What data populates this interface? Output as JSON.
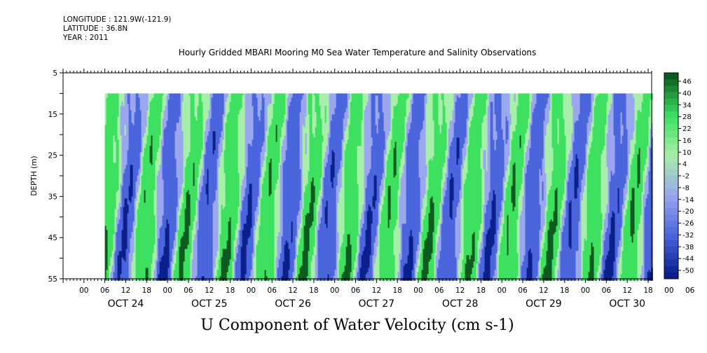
{
  "header": {
    "longitude": "LONGITUDE : 121.9W(-121.9)",
    "latitude": "LATITUDE : 36.8N",
    "year": "YEAR : 2011"
  },
  "chart_data": {
    "type": "heatmap",
    "title": "Hourly Gridded MBARI Mooring M0 Sea Water Temperature and Salinity Observations",
    "xlabel": "U Component of Water Velocity (cm s-1)",
    "ylabel": "DEPTH (m)",
    "y_range": [
      5,
      55
    ],
    "y_ticks": [
      "5",
      "15",
      "25",
      "35",
      "45",
      "55"
    ],
    "x_range": [
      "2011-10-23T18:00",
      "2011-10-30T19:00"
    ],
    "x_hour_ticks": [
      "00",
      "06",
      "12",
      "18",
      "00",
      "06",
      "12",
      "18",
      "00",
      "06",
      "12",
      "18",
      "00",
      "06",
      "12",
      "18",
      "00",
      "06",
      "12",
      "18",
      "00",
      "06",
      "12",
      "18",
      "00",
      "06",
      "12",
      "18",
      "00",
      "06",
      "12",
      "18"
    ],
    "day_labels": [
      "OCT 24",
      "OCT 25",
      "OCT 26",
      "OCT 27",
      "OCT 28",
      "OCT 29",
      "OCT 30"
    ],
    "data_depth_range": [
      10,
      55
    ],
    "data_time_range": [
      "2011-10-24T06:00",
      "2011-10-30T19:00"
    ],
    "colorbar_labels": [
      "46",
      "40",
      "34",
      "28",
      "22",
      "16",
      "10",
      "4",
      "-2",
      "-8",
      "-14",
      "-20",
      "-26",
      "-32",
      "-38",
      "-44",
      "-50"
    ],
    "colors": {
      "strong_negative": "#0a1e8c",
      "negative": "#4a64dc",
      "weak_negative": "#9aa6ee",
      "weak_positive": "#a6eeaa",
      "positive": "#3ee060",
      "strong_positive": "#0a5a1e"
    }
  }
}
